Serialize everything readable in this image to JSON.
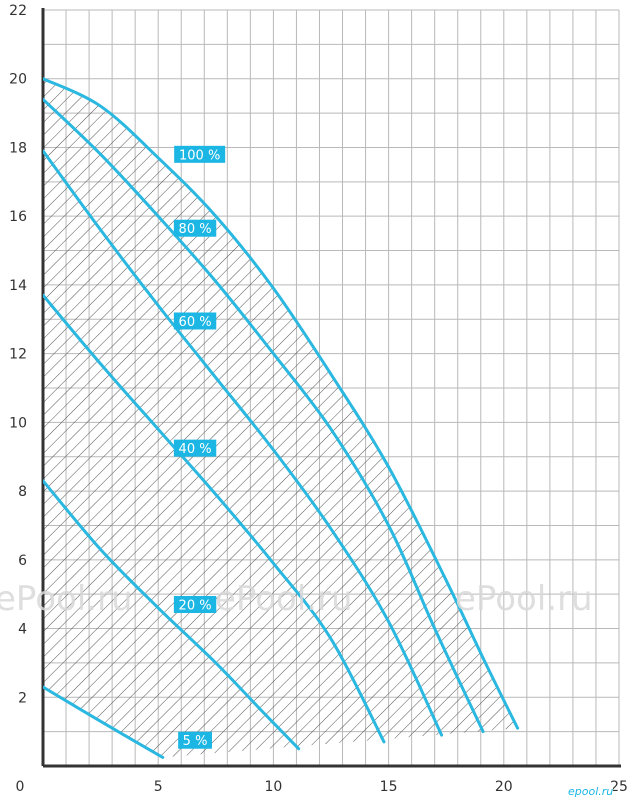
{
  "chart_data": {
    "type": "line",
    "title": "",
    "xlabel": "",
    "ylabel": "",
    "xlim": [
      0,
      25
    ],
    "ylim": [
      0,
      22
    ],
    "x_ticks": [
      "0",
      "5",
      "10",
      "15",
      "20",
      "25"
    ],
    "y_ticks": [
      "2",
      "4",
      "6",
      "8",
      "10",
      "12",
      "14",
      "16",
      "18",
      "20",
      "22"
    ],
    "grid": true,
    "minor_grid_step": {
      "x": 1,
      "y": 1
    },
    "hatched_region": "operating area between the 5 % and 100 % curves",
    "line_color": "#2bb8e0",
    "series": [
      {
        "name": "100 %",
        "points": [
          [
            0,
            20
          ],
          [
            2.5,
            19.2
          ],
          [
            5,
            17.7
          ],
          [
            7.5,
            16.0
          ],
          [
            10,
            13.9
          ],
          [
            12.5,
            11.4
          ],
          [
            15,
            8.7
          ],
          [
            17.5,
            5.4
          ],
          [
            19.2,
            3.0
          ],
          [
            20.6,
            1.1
          ]
        ]
      },
      {
        "name": "80 %",
        "points": [
          [
            0,
            19.4
          ],
          [
            2.5,
            17.8
          ],
          [
            5,
            16.0
          ],
          [
            7.5,
            14.1
          ],
          [
            10,
            12.0
          ],
          [
            12.5,
            9.8
          ],
          [
            15,
            7.0
          ],
          [
            17,
            4.0
          ],
          [
            19.1,
            1.0
          ]
        ]
      },
      {
        "name": "60 %",
        "points": [
          [
            0,
            17.9
          ],
          [
            2.5,
            15.6
          ],
          [
            5,
            13.4
          ],
          [
            7.5,
            11.3
          ],
          [
            10,
            9.2
          ],
          [
            12.5,
            6.9
          ],
          [
            15,
            4.2
          ],
          [
            17.3,
            0.9
          ]
        ]
      },
      {
        "name": "40 %",
        "points": [
          [
            0,
            13.7
          ],
          [
            2.5,
            11.7
          ],
          [
            5,
            9.8
          ],
          [
            7.5,
            7.9
          ],
          [
            10,
            5.9
          ],
          [
            12.5,
            3.7
          ],
          [
            14.8,
            0.7
          ]
        ]
      },
      {
        "name": "20 %",
        "points": [
          [
            0,
            8.3
          ],
          [
            2.5,
            6.3
          ],
          [
            5,
            4.6
          ],
          [
            7.5,
            3.0
          ],
          [
            9.5,
            1.6
          ],
          [
            11.1,
            0.5
          ]
        ]
      },
      {
        "name": "5 %",
        "points": [
          [
            0,
            2.3
          ],
          [
            2.5,
            1.3
          ],
          [
            5.2,
            0.25
          ]
        ]
      }
    ],
    "curve_label_points": [
      {
        "text": "100 %",
        "x": 6.8,
        "y": 17.8
      },
      {
        "text": "80 %",
        "x": 6.6,
        "y": 15.65
      },
      {
        "text": "60 %",
        "x": 6.6,
        "y": 12.95
      },
      {
        "text": "40 %",
        "x": 6.6,
        "y": 9.25
      },
      {
        "text": "20 %",
        "x": 6.6,
        "y": 4.7
      },
      {
        "text": "5 %",
        "x": 6.6,
        "y": 0.75
      }
    ]
  },
  "watermark": {
    "text": "ePool.ru",
    "repeats": 3,
    "color": "#d9d9d9"
  },
  "brand": {
    "text": "epool.ru"
  }
}
